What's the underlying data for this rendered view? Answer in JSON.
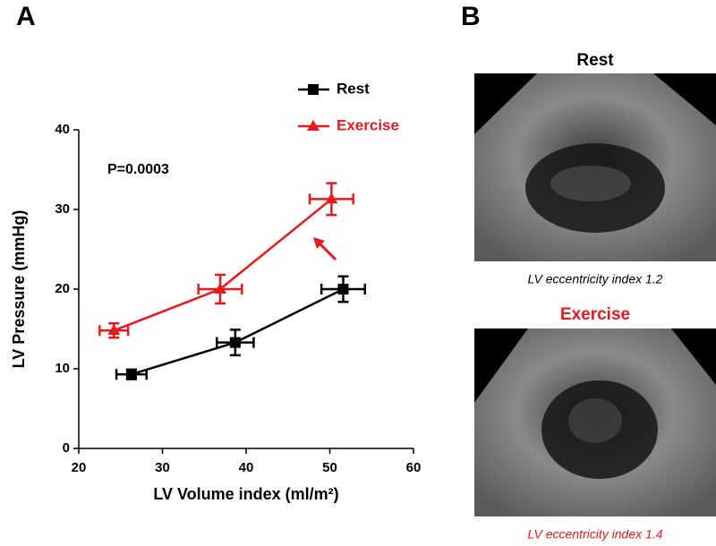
{
  "panels": {
    "a_label": "A",
    "b_label": "B",
    "images": [
      {
        "title": "Rest",
        "caption": "LV eccentricity index 1.2"
      },
      {
        "title": "Exercise",
        "caption": "LV eccentricity index 1.4"
      }
    ]
  },
  "chart_data": {
    "type": "line",
    "xlabel": "LV Volume index (ml/m²)",
    "ylabel": "LV Pressure (mmHg)",
    "annotation": "P=0.0003",
    "xlim": [
      20,
      60
    ],
    "xticks": [
      20,
      30,
      40,
      50,
      60
    ],
    "ylim": [
      0,
      40
    ],
    "yticks": [
      0,
      10,
      20,
      30,
      40
    ],
    "series": [
      {
        "name": "Rest",
        "color": "#000000",
        "marker": "square",
        "x": [
          26.3,
          38.7,
          51.6
        ],
        "values": [
          9.3,
          13.3,
          20.0
        ],
        "x_errors": [
          1.8,
          2.2,
          2.6
        ],
        "y_errors": [
          0.6,
          1.6,
          1.6
        ]
      },
      {
        "name": "Exercise",
        "color": "#e8191c",
        "marker": "triangle",
        "x": [
          24.2,
          36.9,
          50.2
        ],
        "values": [
          14.8,
          20.0,
          31.3
        ],
        "x_errors": [
          1.7,
          2.6,
          2.6
        ],
        "y_errors": [
          0.9,
          1.8,
          2.0
        ]
      }
    ]
  }
}
